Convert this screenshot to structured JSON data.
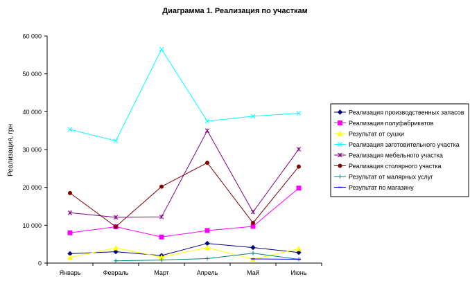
{
  "chart_data": {
    "type": "line",
    "title": "Диаграмма 1. Реализация по участкам",
    "ylabel": "Реализация, грн",
    "xlabel": "",
    "categories": [
      "Январь",
      "Февраль",
      "Март",
      "Апрель",
      "Май",
      "Июнь"
    ],
    "ylim": [
      0,
      60000
    ],
    "yticks": [
      0,
      10000,
      20000,
      30000,
      40000,
      50000,
      60000
    ],
    "ytick_labels": [
      "0",
      "10 000",
      "20 000",
      "30 000",
      "40 000",
      "50 000",
      "60 000"
    ],
    "grid": false,
    "legend_position": "right",
    "series": [
      {
        "name": "Реализация производственных запасов",
        "color": "#000080",
        "marker": "diamond",
        "values": [
          2500,
          3000,
          2000,
          5200,
          4100,
          2800
        ]
      },
      {
        "name": "Реализация полуфабрикатов",
        "color": "#ff00ff",
        "marker": "square",
        "values": [
          8000,
          9600,
          6900,
          8600,
          9700,
          19800
        ]
      },
      {
        "name": "Результат от сушки",
        "color": "#ffff00",
        "marker": "triangle",
        "values": [
          1500,
          4000,
          1600,
          4100,
          1000,
          3800
        ]
      },
      {
        "name": "Реализация заготовительного участка",
        "color": "#00ffff",
        "marker": "x",
        "values": [
          35300,
          32300,
          56500,
          37500,
          38800,
          39600
        ]
      },
      {
        "name": "Реализация мебельного участка",
        "color": "#800080",
        "marker": "star",
        "values": [
          13300,
          12100,
          12200,
          35000,
          13500,
          30100
        ]
      },
      {
        "name": "Реализация столярного участка",
        "color": "#800000",
        "marker": "circle",
        "values": [
          18500,
          9600,
          20200,
          26500,
          10600,
          25500
        ]
      },
      {
        "name": "Результат от малярных услуг",
        "color": "#008080",
        "marker": "plus",
        "values": [
          null,
          600,
          800,
          1200,
          2600,
          1000
        ]
      },
      {
        "name": "Результат по магазину",
        "color": "#0000ff",
        "marker": "dash",
        "values": [
          null,
          null,
          null,
          null,
          1100,
          1000
        ]
      }
    ]
  }
}
